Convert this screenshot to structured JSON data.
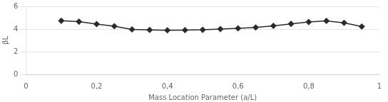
{
  "chart_data": {
    "type": "line",
    "x": [
      0.1,
      0.15,
      0.2,
      0.25,
      0.3,
      0.35,
      0.4,
      0.45,
      0.5,
      0.55,
      0.6,
      0.65,
      0.7,
      0.75,
      0.8,
      0.85,
      0.9,
      0.95
    ],
    "values": [
      4.73,
      4.65,
      4.44,
      4.25,
      3.97,
      3.92,
      3.89,
      3.91,
      3.93,
      4.0,
      4.06,
      4.14,
      4.28,
      4.46,
      4.62,
      4.72,
      4.55,
      4.22
    ],
    "xlabel": "Mass Location Parameter (a/L)",
    "ylabel": "βL",
    "xlim": [
      0,
      1
    ],
    "ylim": [
      0,
      6
    ],
    "xticks": [
      0,
      {
        "value": 0.2,
        "label": "0,2"
      },
      {
        "value": 0.4,
        "label": "0,4"
      },
      {
        "value": 0.6,
        "label": "0,6"
      },
      {
        "value": 0.8,
        "label": "0,8"
      },
      1
    ],
    "yticks": [
      0,
      2,
      4,
      6
    ],
    "color": "#2b2b2b",
    "marker": "diamond",
    "grid": "y"
  }
}
